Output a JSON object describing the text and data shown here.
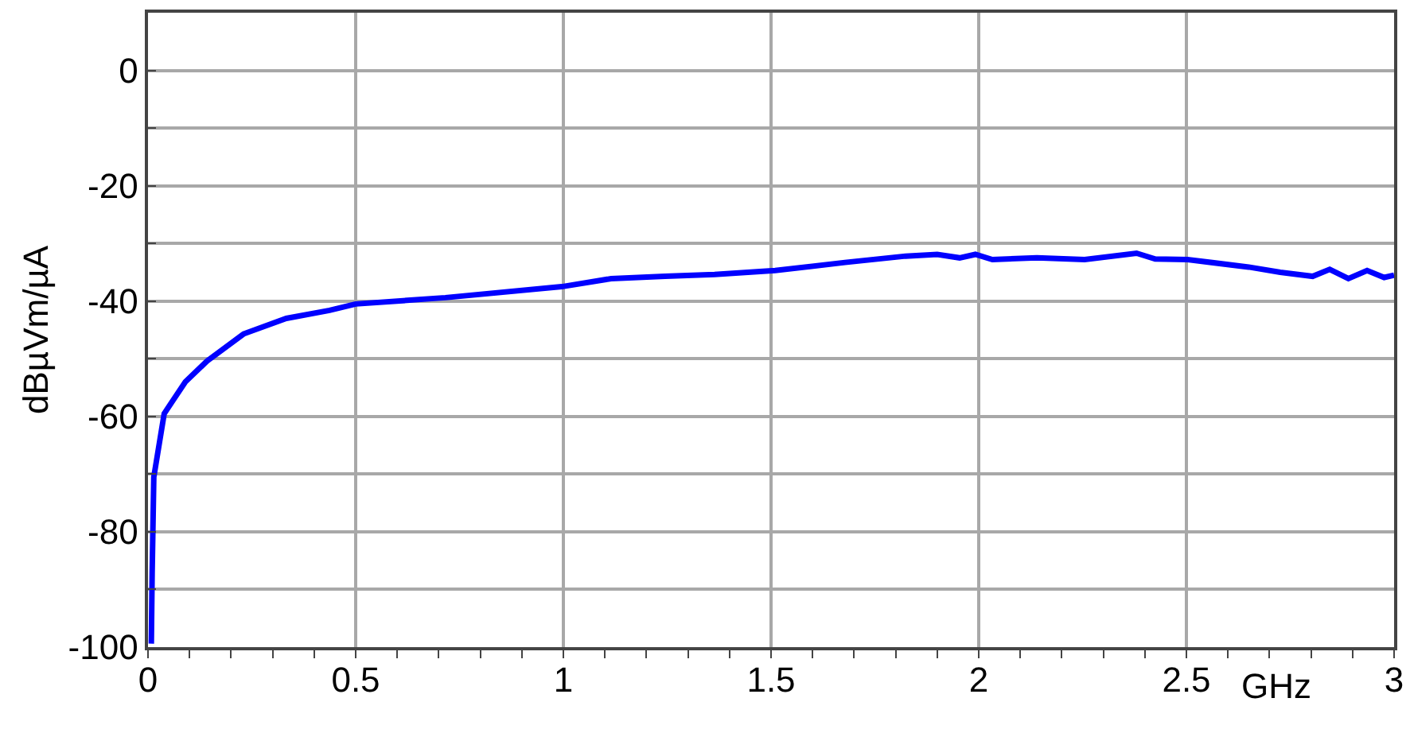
{
  "chart_data": {
    "type": "line",
    "xlabel": "GHz",
    "ylabel": "dBµVm/µA",
    "x": [
      0.008,
      0.01,
      0.014,
      0.039,
      0.09,
      0.142,
      0.23,
      0.333,
      0.437,
      0.5,
      0.716,
      0.996,
      1.115,
      1.245,
      1.364,
      1.51,
      1.678,
      1.824,
      1.9,
      1.954,
      1.992,
      2.033,
      2.14,
      2.255,
      2.38,
      2.425,
      2.503,
      2.65,
      2.726,
      2.804,
      2.845,
      2.89,
      2.935,
      2.976,
      3.0
    ],
    "series": [
      {
        "color": "#0000ff",
        "values": [
          -99.4,
          -87,
          -70.5,
          -59.5,
          -54,
          -50.4,
          -45.7,
          -43,
          -41.6,
          -40.5,
          -39.4,
          -37.5,
          -36.1,
          -35.7,
          -35.4,
          -34.7,
          -33.3,
          -32.2,
          -31.9,
          -32.5,
          -31.9,
          -32.8,
          -32.5,
          -32.8,
          -31.7,
          -32.7,
          -32.8,
          -34.1,
          -35,
          -35.7,
          -34.5,
          -36.1,
          -34.7,
          -35.9,
          -35.5
        ]
      }
    ],
    "xlim": [
      0,
      3
    ],
    "xticks": [
      0,
      0.5,
      1,
      1.5,
      2,
      2.5,
      3
    ],
    "ylim": [
      -100,
      10
    ],
    "yticks": [
      {
        "value": -100,
        "label": "-100"
      },
      {
        "value": -90,
        "label": null
      },
      {
        "value": -80,
        "label": "-80"
      },
      {
        "value": -70,
        "label": null
      },
      {
        "value": -60,
        "label": "-60"
      },
      {
        "value": -50,
        "label": null
      },
      {
        "value": -40,
        "label": "-40"
      },
      {
        "value": -30,
        "label": null
      },
      {
        "value": -20,
        "label": "-20"
      },
      {
        "value": -10,
        "label": null
      },
      {
        "value": 0,
        "label": "0"
      }
    ],
    "grid": true,
    "marker": "none",
    "line_style": "solid"
  }
}
